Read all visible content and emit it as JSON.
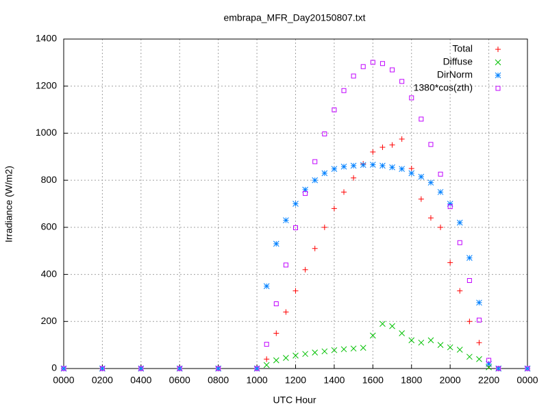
{
  "chart_data": {
    "type": "scatter",
    "title": "embrapa_MFR_Day20150807.txt",
    "x_label": "UTC Hour",
    "y_label": "Irradiance (W/m2)",
    "x": [
      0,
      2,
      4,
      6,
      8,
      10,
      10.5,
      11,
      11.5,
      12,
      12.5,
      13,
      13.5,
      14,
      14.5,
      15,
      15.5,
      16,
      16.5,
      17,
      17.5,
      18,
      18.5,
      19,
      19.5,
      20,
      20.5,
      21,
      21.5,
      22,
      22.5,
      24
    ],
    "series": [
      {
        "name": "Total",
        "color": "#ff0000",
        "marker": "plus",
        "values": [
          0,
          0,
          0,
          0,
          0,
          0,
          40,
          150,
          240,
          330,
          420,
          510,
          600,
          680,
          750,
          810,
          870,
          920,
          940,
          950,
          975,
          850,
          720,
          640,
          600,
          450,
          330,
          200,
          110,
          10,
          0,
          0
        ]
      },
      {
        "name": "Diffuse",
        "color": "#00c000",
        "marker": "cross",
        "values": [
          0,
          0,
          0,
          0,
          0,
          0,
          15,
          35,
          45,
          55,
          62,
          68,
          73,
          78,
          82,
          85,
          88,
          140,
          190,
          180,
          150,
          120,
          110,
          120,
          100,
          90,
          80,
          50,
          40,
          5,
          0,
          0
        ]
      },
      {
        "name": "DirNorm",
        "color": "#0080ff",
        "marker": "star",
        "values": [
          0,
          0,
          0,
          0,
          0,
          0,
          350,
          530,
          630,
          700,
          760,
          800,
          830,
          848,
          858,
          862,
          865,
          866,
          862,
          855,
          848,
          830,
          815,
          790,
          750,
          700,
          620,
          470,
          280,
          20,
          0,
          0
        ]
      },
      {
        "name": "1380*cos(zth)",
        "color": "#c000ff",
        "marker": "square",
        "values": [
          0,
          0,
          0,
          0,
          0,
          0,
          103,
          275,
          440,
          598,
          744,
          879,
          997,
          1099,
          1181,
          1243,
          1283,
          1301,
          1296,
          1269,
          1220,
          1150,
          1060,
          952,
          826,
          688,
          535,
          374,
          206,
          35,
          0,
          0
        ]
      }
    ],
    "xlim": [
      0,
      24
    ],
    "xticks": [
      {
        "value": 0,
        "label": "0000"
      },
      {
        "value": 2,
        "label": "0200"
      },
      {
        "value": 4,
        "label": "0400"
      },
      {
        "value": 6,
        "label": "0600"
      },
      {
        "value": 8,
        "label": "0800"
      },
      {
        "value": 10,
        "label": "1000"
      },
      {
        "value": 12,
        "label": "1200"
      },
      {
        "value": 14,
        "label": "1400"
      },
      {
        "value": 16,
        "label": "1600"
      },
      {
        "value": 18,
        "label": "1800"
      },
      {
        "value": 20,
        "label": "2000"
      },
      {
        "value": 22,
        "label": "2200"
      },
      {
        "value": 24,
        "label": "0000"
      }
    ],
    "ylim": [
      0,
      1400
    ],
    "yticks": [
      0,
      200,
      400,
      600,
      800,
      1000,
      1200,
      1400
    ],
    "grid": true,
    "legend": "top-right"
  }
}
